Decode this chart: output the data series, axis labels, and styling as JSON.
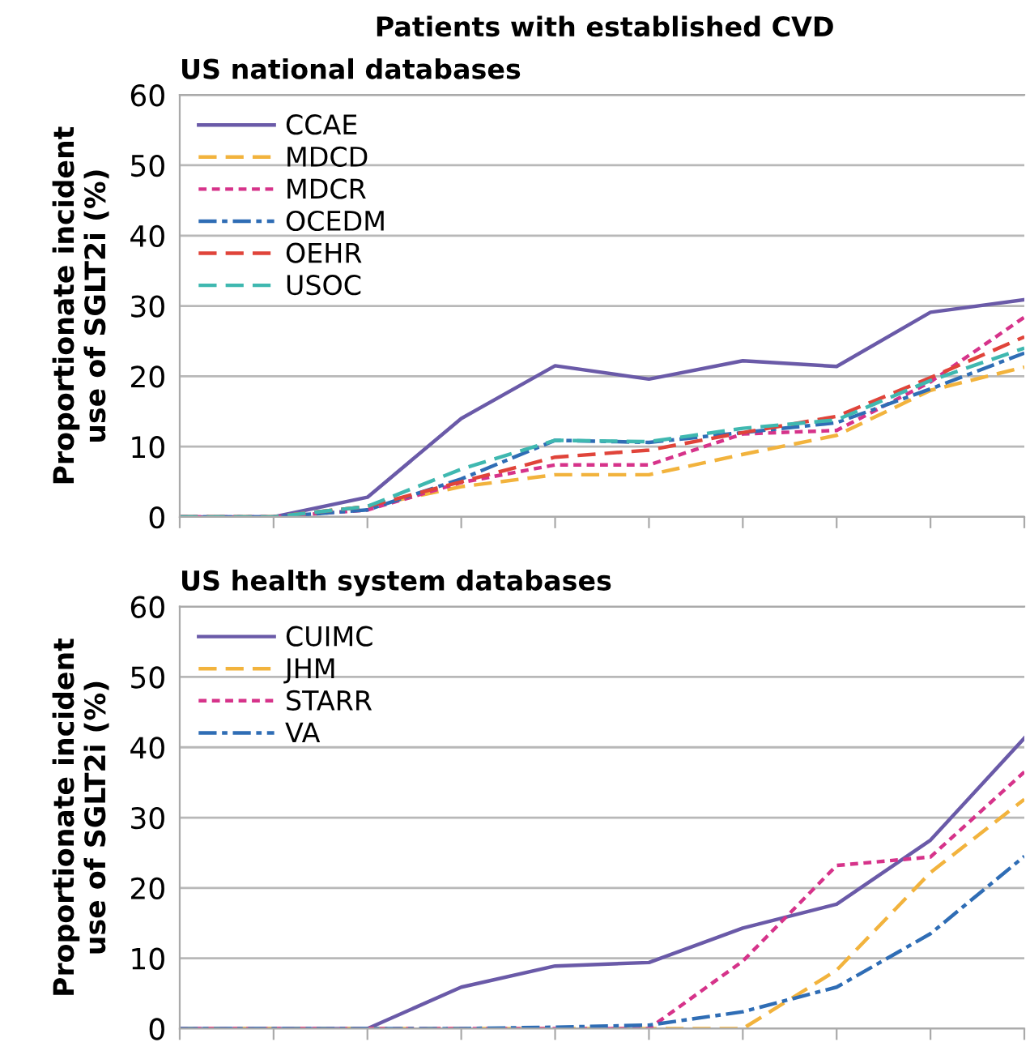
{
  "chart_data": [
    {
      "type": "line",
      "title": "Patients with established CVD",
      "subtitle": "US national databases",
      "ylabel": "Proportionate incident\nuse of SGLT2i (%)",
      "categories": [
        null,
        null,
        null,
        null,
        null,
        null,
        null,
        null,
        null,
        null
      ],
      "ylim": [
        0,
        60
      ],
      "yticks": [
        0,
        10,
        20,
        30,
        40,
        50,
        60
      ],
      "grid": "y",
      "legend": "top left",
      "series": [
        {
          "name": "CCAE",
          "color": "#6a5aa8",
          "line_style": "solid",
          "values": [
            0,
            0,
            2.8,
            14.0,
            21.5,
            19.6,
            22.2,
            21.4,
            29.1,
            30.9
          ]
        },
        {
          "name": "MDCD",
          "color": "#f2b33d",
          "line_style": "dashed",
          "values": [
            0,
            0,
            1.5,
            4.3,
            6.0,
            6.0,
            8.9,
            11.6,
            18.0,
            21.3
          ]
        },
        {
          "name": "MDCR",
          "color": "#d6338a",
          "line_style": "dotted",
          "values": [
            0,
            0,
            1.0,
            4.9,
            7.4,
            7.4,
            11.8,
            12.3,
            19.2,
            28.4
          ]
        },
        {
          "name": "OCEDM",
          "color": "#2f6db5",
          "line_style": "dashdot",
          "values": [
            0,
            0,
            1.0,
            5.4,
            10.9,
            10.6,
            12.0,
            13.4,
            18.2,
            23.3
          ]
        },
        {
          "name": "OEHR",
          "color": "#e0443a",
          "line_style": "dashed",
          "values": [
            0,
            0,
            1.5,
            5.0,
            8.5,
            9.5,
            12.0,
            14.3,
            19.8,
            25.6
          ]
        },
        {
          "name": "USOC",
          "color": "#3fb8b0",
          "line_style": "dashed",
          "values": [
            0,
            0,
            1.5,
            6.8,
            10.9,
            10.7,
            12.6,
            13.8,
            19.4,
            24.0
          ]
        }
      ]
    },
    {
      "type": "line",
      "title": "US health system databases",
      "ylabel": "Proportionate incident\nuse of SGLT2i (%)",
      "categories": [
        null,
        null,
        null,
        null,
        null,
        null,
        null,
        null,
        null,
        null
      ],
      "ylim": [
        0,
        60
      ],
      "yticks": [
        0,
        10,
        20,
        30,
        40,
        50,
        60
      ],
      "grid": "y",
      "legend": "top left",
      "series": [
        {
          "name": "CUIMC",
          "color": "#6a5aa8",
          "line_style": "solid",
          "values": [
            0,
            0,
            0,
            5.9,
            8.9,
            9.4,
            14.3,
            17.7,
            26.8,
            41.3
          ]
        },
        {
          "name": "JHM",
          "color": "#f2b33d",
          "line_style": "dashed",
          "values": [
            0,
            0,
            0,
            0,
            0,
            0,
            0,
            8.3,
            22.2,
            32.6
          ]
        },
        {
          "name": "STARR",
          "color": "#d6338a",
          "line_style": "dotted",
          "values": [
            0,
            0,
            0,
            0,
            0,
            0,
            9.6,
            23.2,
            24.4,
            36.5
          ]
        },
        {
          "name": "VA",
          "color": "#2f6db5",
          "line_style": "dashdot",
          "values": [
            0,
            0,
            0,
            0,
            0.2,
            0.5,
            2.4,
            5.9,
            13.5,
            24.5
          ]
        }
      ]
    }
  ]
}
